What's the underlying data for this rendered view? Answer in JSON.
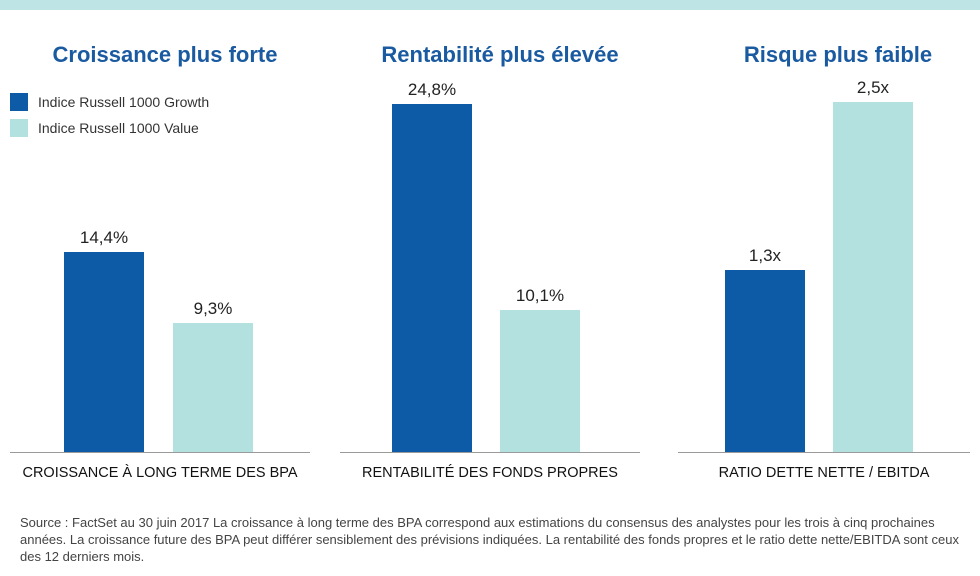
{
  "legend": [
    {
      "label": "Indice Russell 1000 Growth",
      "color": "#0d5aa7"
    },
    {
      "label": "Indice Russell 1000 Value",
      "color": "#b3e1e0"
    }
  ],
  "chart_data": [
    {
      "type": "bar",
      "title": "Croissance plus forte",
      "categories": [
        "CROISSANCE À LONG TERME DES BPA"
      ],
      "series": [
        {
          "name": "Indice Russell 1000 Growth",
          "values": [
            14.4
          ],
          "labels": [
            "14,4%"
          ]
        },
        {
          "name": "Indice Russell 1000 Value",
          "values": [
            9.3
          ],
          "labels": [
            "9,3%"
          ]
        }
      ]
    },
    {
      "type": "bar",
      "title": "Rentabilité plus élevée",
      "categories": [
        "RENTABILITÉ DES FONDS PROPRES"
      ],
      "series": [
        {
          "name": "Indice Russell 1000 Growth",
          "values": [
            24.8
          ],
          "labels": [
            "24,8%"
          ]
        },
        {
          "name": "Indice Russell 1000 Value",
          "values": [
            10.1
          ],
          "labels": [
            "10,1%"
          ]
        }
      ]
    },
    {
      "type": "bar",
      "title": "Risque plus faible",
      "categories": [
        "RATIO DETTE NETTE / EBITDA"
      ],
      "series": [
        {
          "name": "Indice Russell 1000 Growth",
          "values": [
            1.3
          ],
          "labels": [
            "1,3x"
          ]
        },
        {
          "name": "Indice Russell 1000 Value",
          "values": [
            2.5
          ],
          "labels": [
            "2,5x"
          ]
        }
      ]
    }
  ],
  "source": "Source : FactSet au 30 juin 2017 La croissance à long terme des BPA correspond aux estimations du consensus des analystes pour les trois à cinq prochaines années. La croissance future des BPA peut différer sensiblement des prévisions indiquées. La rentabilité des fonds propres et le ratio dette nette/EBITDA sont ceux des 12 derniers mois."
}
